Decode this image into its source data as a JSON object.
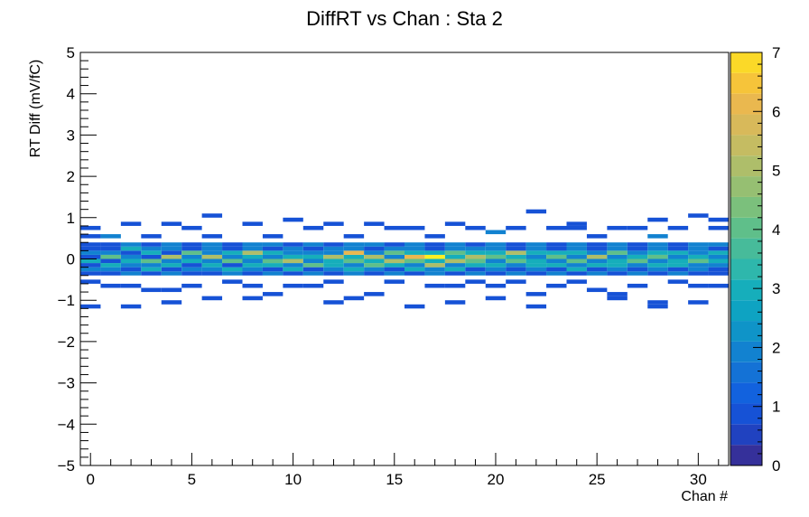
{
  "chart_data": {
    "type": "heatmap",
    "title": "DiffRT vs Chan : Sta 2",
    "xlabel": "Chan #",
    "ylabel": "RT Diff (mV/fC)",
    "xlim": [
      -0.5,
      31.5
    ],
    "ylim": [
      -5,
      5
    ],
    "x_ticks": [
      0,
      5,
      10,
      15,
      20,
      25,
      30
    ],
    "y_ticks": [
      -5,
      -4,
      -3,
      -2,
      -1,
      0,
      1,
      2,
      3,
      4,
      5
    ],
    "x_bin_width": 1,
    "y_bin_width": 0.1,
    "colorbar": {
      "zlim": [
        0,
        7
      ],
      "ticks": [
        0,
        1,
        2,
        3,
        4,
        5,
        6,
        7
      ],
      "levels": 20
    },
    "grid": false,
    "core_y_bins": [
      -0.35,
      -0.25,
      -0.15,
      -0.05,
      0.05,
      0.15,
      0.25,
      0.35
    ],
    "core_counts": [
      [
        1,
        2,
        1,
        3,
        1,
        2,
        1,
        1
      ],
      [
        1,
        2,
        3,
        1,
        4,
        2,
        1,
        1
      ],
      [
        2,
        1,
        2,
        3,
        2,
        1,
        3,
        2
      ],
      [
        1,
        3,
        2,
        4,
        1,
        3,
        2,
        1
      ],
      [
        2,
        1,
        3,
        2,
        5,
        1,
        2,
        2
      ],
      [
        1,
        2,
        1,
        3,
        2,
        4,
        1,
        1
      ],
      [
        1,
        2,
        3,
        2,
        5,
        2,
        2,
        2
      ],
      [
        2,
        3,
        1,
        4,
        2,
        3,
        1,
        1
      ],
      [
        1,
        2,
        3,
        2,
        3,
        5,
        2,
        2
      ],
      [
        2,
        1,
        3,
        4,
        2,
        3,
        1,
        2
      ],
      [
        1,
        3,
        2,
        5,
        3,
        2,
        2,
        1
      ],
      [
        2,
        1,
        4,
        2,
        3,
        2,
        1,
        2
      ],
      [
        1,
        2,
        3,
        3,
        5,
        2,
        2,
        1
      ],
      [
        2,
        3,
        2,
        4,
        3,
        6,
        2,
        2
      ],
      [
        1,
        2,
        4,
        3,
        5,
        2,
        1,
        2
      ],
      [
        2,
        1,
        3,
        5,
        2,
        4,
        2,
        1
      ],
      [
        1,
        3,
        2,
        4,
        6,
        3,
        2,
        2
      ],
      [
        2,
        2,
        5,
        3,
        7,
        3,
        1,
        1
      ],
      [
        1,
        3,
        2,
        5,
        3,
        4,
        2,
        2
      ],
      [
        2,
        1,
        3,
        4,
        5,
        3,
        2,
        1
      ],
      [
        1,
        2,
        3,
        2,
        4,
        3,
        2,
        2
      ],
      [
        2,
        1,
        2,
        4,
        3,
        5,
        1,
        1
      ],
      [
        1,
        2,
        3,
        3,
        2,
        3,
        2,
        2
      ],
      [
        2,
        1,
        3,
        2,
        4,
        3,
        1,
        1
      ],
      [
        1,
        3,
        2,
        4,
        2,
        3,
        2,
        2
      ],
      [
        2,
        1,
        3,
        2,
        5,
        2,
        1,
        1
      ],
      [
        1,
        2,
        3,
        3,
        2,
        4,
        2,
        2
      ],
      [
        2,
        1,
        2,
        4,
        3,
        2,
        1,
        1
      ],
      [
        1,
        2,
        3,
        2,
        4,
        3,
        2,
        2
      ],
      [
        2,
        1,
        3,
        3,
        2,
        3,
        1,
        1
      ],
      [
        1,
        2,
        2,
        4,
        3,
        2,
        2,
        2
      ],
      [
        1,
        1,
        2,
        3,
        2,
        3,
        1,
        2
      ]
    ],
    "outliers": [
      {
        "x": 0,
        "y": 0.75,
        "z": 1
      },
      {
        "x": 0,
        "y": 0.55,
        "z": 1
      },
      {
        "x": 0,
        "y": -0.55,
        "z": 1
      },
      {
        "x": 0,
        "y": -1.15,
        "z": 1
      },
      {
        "x": 1,
        "y": 0.55,
        "z": 2
      },
      {
        "x": 1,
        "y": -0.65,
        "z": 1
      },
      {
        "x": 2,
        "y": 0.85,
        "z": 1
      },
      {
        "x": 2,
        "y": -0.65,
        "z": 1
      },
      {
        "x": 2,
        "y": -1.15,
        "z": 1
      },
      {
        "x": 3,
        "y": 0.55,
        "z": 1
      },
      {
        "x": 3,
        "y": -0.75,
        "z": 1
      },
      {
        "x": 4,
        "y": 0.85,
        "z": 1
      },
      {
        "x": 4,
        "y": -0.75,
        "z": 1
      },
      {
        "x": 4,
        "y": -1.05,
        "z": 1
      },
      {
        "x": 5,
        "y": 0.75,
        "z": 1
      },
      {
        "x": 5,
        "y": -0.65,
        "z": 1
      },
      {
        "x": 6,
        "y": 1.05,
        "z": 1
      },
      {
        "x": 6,
        "y": 0.55,
        "z": 1
      },
      {
        "x": 6,
        "y": -0.95,
        "z": 1
      },
      {
        "x": 7,
        "y": -0.55,
        "z": 1
      },
      {
        "x": 8,
        "y": 0.85,
        "z": 1
      },
      {
        "x": 8,
        "y": -0.65,
        "z": 1
      },
      {
        "x": 8,
        "y": -0.95,
        "z": 1
      },
      {
        "x": 9,
        "y": 0.55,
        "z": 1
      },
      {
        "x": 9,
        "y": -0.85,
        "z": 1
      },
      {
        "x": 10,
        "y": 0.95,
        "z": 1
      },
      {
        "x": 10,
        "y": -0.65,
        "z": 1
      },
      {
        "x": 11,
        "y": 0.75,
        "z": 1
      },
      {
        "x": 11,
        "y": -0.65,
        "z": 1
      },
      {
        "x": 12,
        "y": 0.85,
        "z": 1
      },
      {
        "x": 12,
        "y": -0.55,
        "z": 1
      },
      {
        "x": 12,
        "y": -1.05,
        "z": 1
      },
      {
        "x": 13,
        "y": 0.55,
        "z": 1
      },
      {
        "x": 13,
        "y": -0.95,
        "z": 1
      },
      {
        "x": 14,
        "y": 0.85,
        "z": 1
      },
      {
        "x": 14,
        "y": -0.85,
        "z": 1
      },
      {
        "x": 15,
        "y": 0.75,
        "z": 1
      },
      {
        "x": 15,
        "y": -0.55,
        "z": 1
      },
      {
        "x": 16,
        "y": 0.75,
        "z": 1
      },
      {
        "x": 16,
        "y": -1.15,
        "z": 1
      },
      {
        "x": 17,
        "y": 0.55,
        "z": 1
      },
      {
        "x": 17,
        "y": -0.65,
        "z": 1
      },
      {
        "x": 18,
        "y": 0.85,
        "z": 1
      },
      {
        "x": 18,
        "y": -0.65,
        "z": 1
      },
      {
        "x": 18,
        "y": -1.05,
        "z": 1
      },
      {
        "x": 19,
        "y": 0.75,
        "z": 1
      },
      {
        "x": 19,
        "y": -0.55,
        "z": 1
      },
      {
        "x": 20,
        "y": 0.65,
        "z": 2
      },
      {
        "x": 20,
        "y": -0.65,
        "z": 1
      },
      {
        "x": 20,
        "y": -0.95,
        "z": 1
      },
      {
        "x": 21,
        "y": 0.75,
        "z": 1
      },
      {
        "x": 21,
        "y": -0.55,
        "z": 1
      },
      {
        "x": 22,
        "y": 1.15,
        "z": 1
      },
      {
        "x": 22,
        "y": -0.85,
        "z": 1
      },
      {
        "x": 22,
        "y": -1.15,
        "z": 1
      },
      {
        "x": 23,
        "y": 0.75,
        "z": 1
      },
      {
        "x": 23,
        "y": -0.65,
        "z": 1
      },
      {
        "x": 24,
        "y": 0.85,
        "z": 1
      },
      {
        "x": 24,
        "y": 0.75,
        "z": 1
      },
      {
        "x": 24,
        "y": -0.55,
        "z": 1
      },
      {
        "x": 25,
        "y": 0.55,
        "z": 1
      },
      {
        "x": 25,
        "y": -0.75,
        "z": 1
      },
      {
        "x": 26,
        "y": 0.75,
        "z": 1
      },
      {
        "x": 26,
        "y": -0.85,
        "z": 1
      },
      {
        "x": 26,
        "y": -0.95,
        "z": 1
      },
      {
        "x": 27,
        "y": 0.75,
        "z": 1
      },
      {
        "x": 27,
        "y": -0.65,
        "z": 1
      },
      {
        "x": 28,
        "y": 0.95,
        "z": 1
      },
      {
        "x": 28,
        "y": 0.55,
        "z": 2
      },
      {
        "x": 28,
        "y": -1.05,
        "z": 1
      },
      {
        "x": 28,
        "y": -1.15,
        "z": 1
      },
      {
        "x": 29,
        "y": 0.75,
        "z": 1
      },
      {
        "x": 29,
        "y": -0.55,
        "z": 1
      },
      {
        "x": 30,
        "y": 1.05,
        "z": 1
      },
      {
        "x": 30,
        "y": -0.65,
        "z": 1
      },
      {
        "x": 30,
        "y": -1.05,
        "z": 1
      },
      {
        "x": 31,
        "y": 0.95,
        "z": 1
      },
      {
        "x": 31,
        "y": 0.75,
        "z": 1
      },
      {
        "x": 31,
        "y": -0.65,
        "z": 1
      }
    ]
  }
}
